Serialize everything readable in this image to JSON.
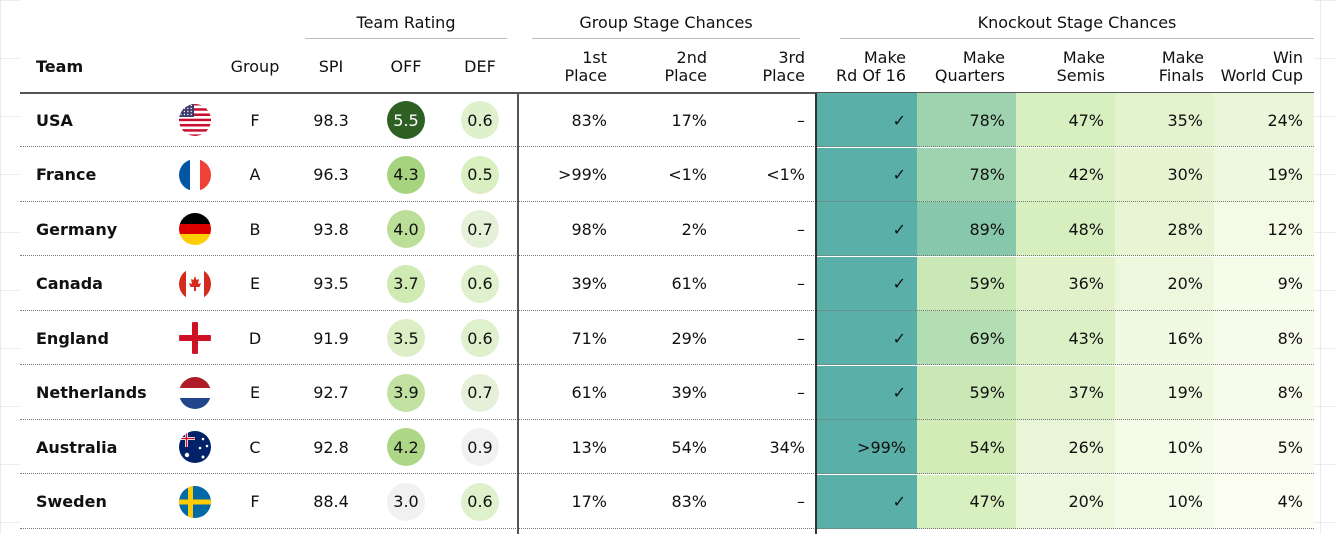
{
  "chart_data": {
    "type": "table",
    "group_headers": {
      "team_rating": "Team Rating",
      "group_stage": "Group Stage Chances",
      "knockout_stage": "Knockout Stage Chances"
    },
    "columns": {
      "team": "Team",
      "group": "Group",
      "spi": "SPI",
      "off": "OFF",
      "def": "DEF",
      "first": "1st\nPlace",
      "second": "2nd\nPlace",
      "third": "3rd\nPlace",
      "r16": "Make\nRd Of 16",
      "qf": "Make\nQuarters",
      "sf": "Make\nSemis",
      "final": "Make\nFinals",
      "win": "Win\nWorld Cup"
    },
    "rows": [
      {
        "team": "USA",
        "flag": "us-flag-icon",
        "group": "F",
        "spi": "98.3",
        "off": "5.5",
        "def": "0.6",
        "first": "83%",
        "second": "17%",
        "third": "–",
        "r16": "✓",
        "qf": "78%",
        "sf": "47%",
        "final": "35%",
        "win": "24%"
      },
      {
        "team": "France",
        "flag": "france-flag-icon",
        "group": "A",
        "spi": "96.3",
        "off": "4.3",
        "def": "0.5",
        "first": ">99%",
        "second": "<1%",
        "third": "<1%",
        "r16": "✓",
        "qf": "78%",
        "sf": "42%",
        "final": "30%",
        "win": "19%"
      },
      {
        "team": "Germany",
        "flag": "germany-flag-icon",
        "group": "B",
        "spi": "93.8",
        "off": "4.0",
        "def": "0.7",
        "first": "98%",
        "second": "2%",
        "third": "–",
        "r16": "✓",
        "qf": "89%",
        "sf": "48%",
        "final": "28%",
        "win": "12%"
      },
      {
        "team": "Canada",
        "flag": "canada-flag-icon",
        "group": "E",
        "spi": "93.5",
        "off": "3.7",
        "def": "0.6",
        "first": "39%",
        "second": "61%",
        "third": "–",
        "r16": "✓",
        "qf": "59%",
        "sf": "36%",
        "final": "20%",
        "win": "9%"
      },
      {
        "team": "England",
        "flag": "england-flag-icon",
        "group": "D",
        "spi": "91.9",
        "off": "3.5",
        "def": "0.6",
        "first": "71%",
        "second": "29%",
        "third": "–",
        "r16": "✓",
        "qf": "69%",
        "sf": "43%",
        "final": "16%",
        "win": "8%"
      },
      {
        "team": "Netherlands",
        "flag": "netherlands-flag-icon",
        "group": "E",
        "spi": "92.7",
        "off": "3.9",
        "def": "0.7",
        "first": "61%",
        "second": "39%",
        "third": "–",
        "r16": "✓",
        "qf": "59%",
        "sf": "37%",
        "final": "19%",
        "win": "8%"
      },
      {
        "team": "Australia",
        "flag": "australia-flag-icon",
        "group": "C",
        "spi": "92.8",
        "off": "4.2",
        "def": "0.9",
        "first": "13%",
        "second": "54%",
        "third": "34%",
        "r16": ">99%",
        "qf": "54%",
        "sf": "26%",
        "final": "10%",
        "win": "5%"
      },
      {
        "team": "Sweden",
        "flag": "sweden-flag-icon",
        "group": "F",
        "spi": "88.4",
        "off": "3.0",
        "def": "0.6",
        "first": "17%",
        "second": "83%",
        "third": "–",
        "r16": "✓",
        "qf": "47%",
        "sf": "20%",
        "final": "10%",
        "win": "4%"
      }
    ],
    "colors": {
      "r16_fill": "#5aafa8",
      "off_dark": "#2e5f23",
      "off_text_dark": "#ffffff",
      "ramp_low": "#fdfef4",
      "ramp_mid": "#d2ecb6",
      "ramp_high": "#6fbba9",
      "rating_low": "#f1f1f1",
      "rating_light": "#d9efbf",
      "rating_mid": "#9fd075",
      "rating_high": "#2e5f23"
    }
  }
}
